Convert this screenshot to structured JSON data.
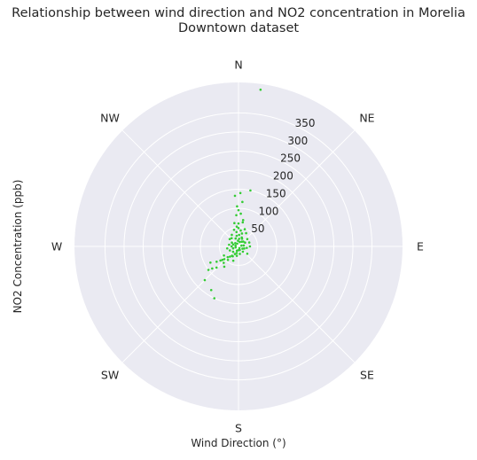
{
  "chart_data": {
    "type": "scatter",
    "projection": "polar",
    "title": "Relationship between wind direction and NO2 concentration in Morelia\nDowntown dataset",
    "xlabel": "Wind Direction (°)",
    "ylabel": "NO2 Concentration (ppb)",
    "theta_direction": "clockwise",
    "theta_zero": "N",
    "direction_labels": [
      "N",
      "NE",
      "E",
      "SE",
      "S",
      "SW",
      "W",
      "NW"
    ],
    "r_ticks": [
      50,
      100,
      150,
      200,
      250,
      300,
      350
    ],
    "r_range": [
      0,
      430
    ],
    "grid": true,
    "point_color": "#33cc33",
    "background_color": "#eaeaf2",
    "points": [
      [
        8,
        415
      ],
      [
        12,
        150
      ],
      [
        2,
        140
      ],
      [
        356,
        133
      ],
      [
        5,
        117
      ],
      [
        358,
        105
      ],
      [
        0,
        95
      ],
      [
        4,
        86
      ],
      [
        356,
        82
      ],
      [
        10,
        64
      ],
      [
        350,
        62
      ],
      [
        355,
        52
      ],
      [
        0,
        48
      ],
      [
        8,
        42
      ],
      [
        352,
        38
      ],
      [
        3,
        30
      ],
      [
        20,
        25
      ],
      [
        340,
        22
      ],
      [
        45,
        18
      ],
      [
        80,
        14
      ],
      [
        120,
        12
      ],
      [
        160,
        10
      ],
      [
        200,
        12
      ],
      [
        250,
        15
      ],
      [
        300,
        20
      ],
      [
        15,
        35
      ],
      [
        25,
        22
      ],
      [
        60,
        20
      ],
      [
        70,
        30
      ],
      [
        100,
        22
      ],
      [
        110,
        16
      ],
      [
        140,
        18
      ],
      [
        170,
        20
      ],
      [
        190,
        25
      ],
      [
        210,
        30
      ],
      [
        220,
        35
      ],
      [
        225,
        40
      ],
      [
        228,
        50
      ],
      [
        230,
        55
      ],
      [
        232,
        60
      ],
      [
        222,
        58
      ],
      [
        218,
        45
      ],
      [
        235,
        70
      ],
      [
        226,
        80
      ],
      [
        230,
        90
      ],
      [
        232,
        100
      ],
      [
        240,
        85
      ],
      [
        225,
        125
      ],
      [
        205,
        150
      ],
      [
        212,
        135
      ],
      [
        215,
        30
      ],
      [
        245,
        25
      ],
      [
        270,
        18
      ],
      [
        290,
        15
      ],
      [
        320,
        28
      ],
      [
        330,
        35
      ],
      [
        345,
        45
      ],
      [
        350,
        28
      ],
      [
        5,
        20
      ],
      [
        30,
        40
      ],
      [
        50,
        30
      ],
      [
        90,
        30
      ],
      [
        130,
        30
      ],
      [
        200,
        40
      ],
      [
        215,
        65
      ],
      [
        238,
        45
      ],
      [
        260,
        30
      ],
      [
        280,
        25
      ],
      [
        310,
        30
      ],
      [
        0,
        60
      ],
      [
        10,
        70
      ],
      [
        20,
        48
      ],
      [
        35,
        15
      ],
      [
        75,
        8
      ],
      [
        150,
        5
      ],
      [
        180,
        10
      ],
      [
        195,
        18
      ],
      [
        205,
        22
      ],
      [
        225,
        20
      ],
      [
        250,
        8
      ],
      [
        285,
        8
      ],
      [
        315,
        12
      ],
      [
        335,
        8
      ],
      [
        355,
        15
      ],
      [
        15,
        12
      ]
    ]
  }
}
